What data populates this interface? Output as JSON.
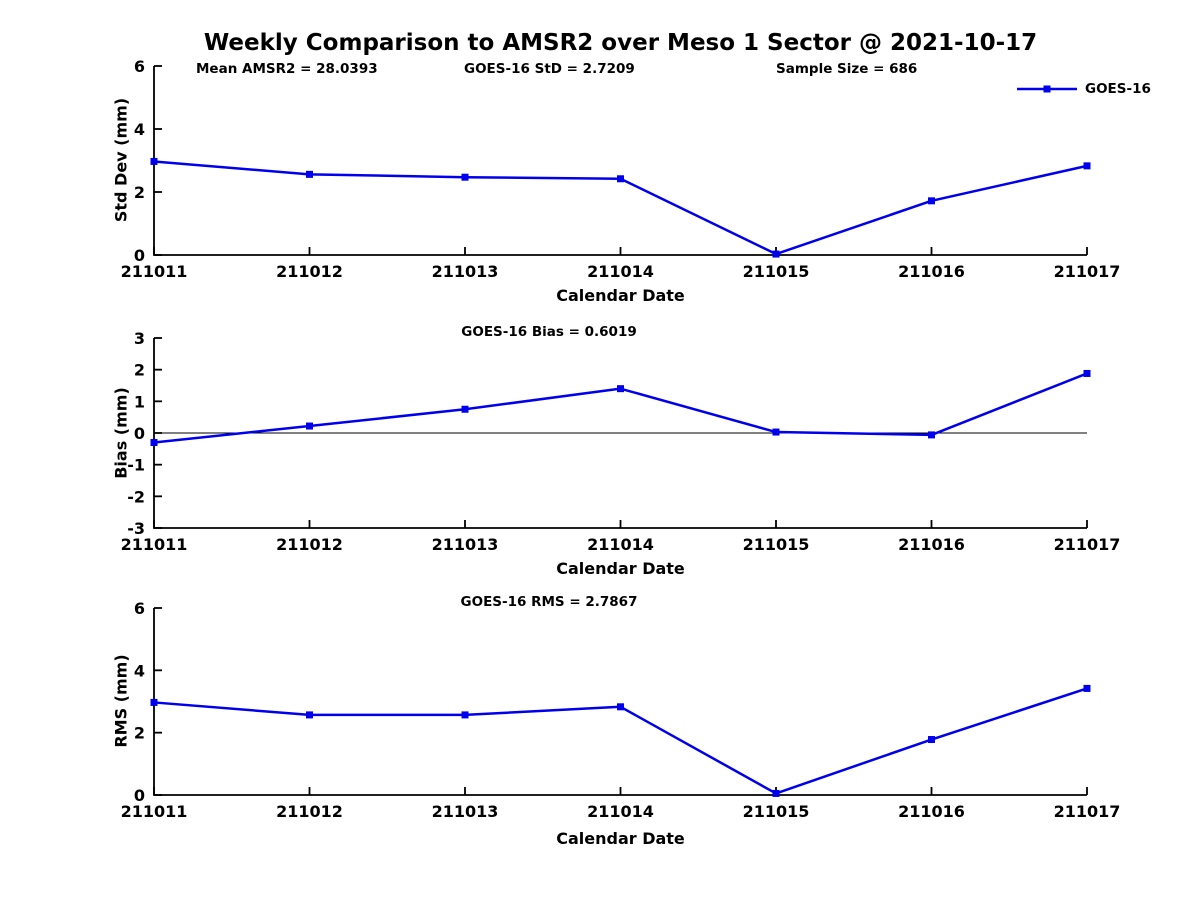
{
  "figure": {
    "title": "Weekly Comparison to AMSR2 over Meso 1 Sector @ 2021-10-17",
    "background_color": "#ffffff",
    "text_color": "#000000",
    "annotations": {
      "mean_amsr2": "Mean AMSR2 = 28.0393",
      "goes16_std": "GOES-16 StD = 2.7209",
      "sample_size": "Sample Size = 686"
    },
    "legend": {
      "label": "GOES-16",
      "line_color": "#0000ee",
      "marker": "square",
      "position": "top-right"
    }
  },
  "chart_data": [
    {
      "type": "line",
      "title": "",
      "ylabel": "Std Dev (mm)",
      "xlabel": "Calendar Date",
      "categories": [
        "211011",
        "211012",
        "211013",
        "211014",
        "211015",
        "211016",
        "211017"
      ],
      "series": [
        {
          "name": "GOES-16",
          "color": "#0000ee",
          "marker": "square",
          "values": [
            2.97,
            2.56,
            2.47,
            2.42,
            0.03,
            1.72,
            2.83
          ]
        }
      ],
      "ylim": [
        0,
        6
      ],
      "yticks": [
        0,
        2,
        4,
        6
      ],
      "grid": false,
      "zero_line": false,
      "legend_position": "top-right"
    },
    {
      "type": "line",
      "title": "GOES-16 Bias  = 0.6019",
      "ylabel": "Bias (mm)",
      "xlabel": "Calendar Date",
      "categories": [
        "211011",
        "211012",
        "211013",
        "211014",
        "211015",
        "211016",
        "211017"
      ],
      "series": [
        {
          "name": "GOES-16",
          "color": "#0000ee",
          "marker": "square",
          "values": [
            -0.3,
            0.22,
            0.75,
            1.4,
            0.03,
            -0.06,
            1.88
          ]
        }
      ],
      "ylim": [
        -3,
        3
      ],
      "yticks": [
        -3,
        -2,
        -1,
        0,
        1,
        2,
        3
      ],
      "grid": false,
      "zero_line": true,
      "legend_position": "none"
    },
    {
      "type": "line",
      "title": "GOES-16 RMS = 2.7867",
      "ylabel": "RMS (mm)",
      "xlabel": "Calendar Date",
      "categories": [
        "211011",
        "211012",
        "211013",
        "211014",
        "211015",
        "211016",
        "211017"
      ],
      "series": [
        {
          "name": "GOES-16",
          "color": "#0000ee",
          "marker": "square",
          "values": [
            2.97,
            2.57,
            2.57,
            2.83,
            0.05,
            1.78,
            3.42
          ]
        }
      ],
      "ylim": [
        0,
        6
      ],
      "yticks": [
        0,
        2,
        4,
        6
      ],
      "grid": false,
      "zero_line": false,
      "legend_position": "none"
    }
  ]
}
